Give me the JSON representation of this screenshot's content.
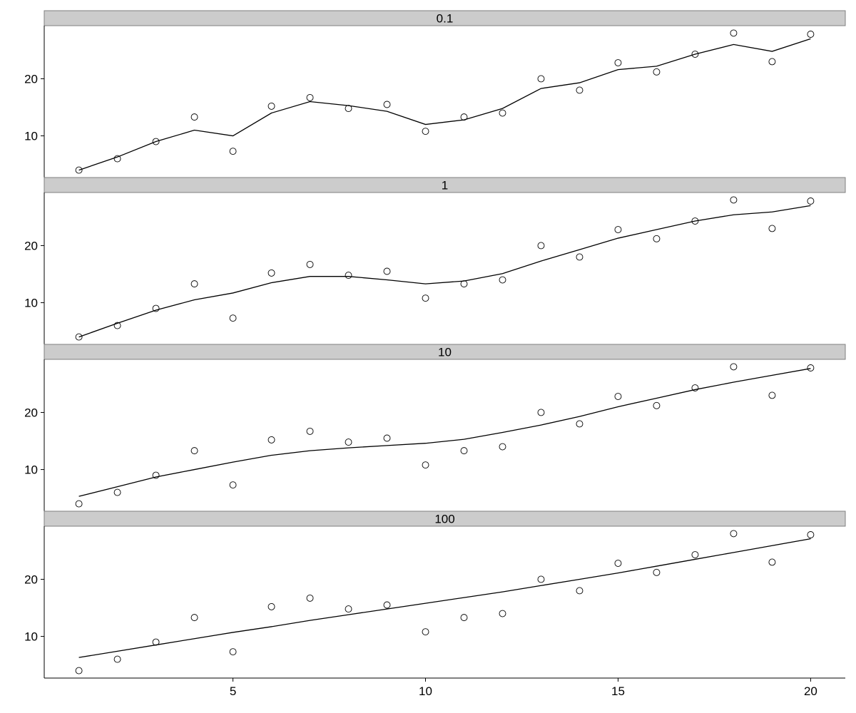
{
  "chart_data": {
    "type": "scatter",
    "facet_labels": [
      "0.1",
      "1",
      "10",
      "100"
    ],
    "x": [
      1,
      2,
      3,
      4,
      5,
      6,
      7,
      8,
      9,
      10,
      11,
      12,
      13,
      14,
      15,
      16,
      17,
      18,
      19,
      20
    ],
    "points_y": [
      4.0,
      6.0,
      9.0,
      13.3,
      7.3,
      15.2,
      16.7,
      14.8,
      15.5,
      10.8,
      13.3,
      14.0,
      20.0,
      18.0,
      22.8,
      21.2,
      24.3,
      28.0,
      23.0,
      27.8
    ],
    "fits": [
      {
        "facet": "0.1",
        "values": [
          4.0,
          6.3,
          9.0,
          11.0,
          10.0,
          14.0,
          16.0,
          15.3,
          14.3,
          12.0,
          12.8,
          14.8,
          18.3,
          19.3,
          21.6,
          22.2,
          24.3,
          26.0,
          24.8,
          27.0
        ]
      },
      {
        "facet": "1",
        "values": [
          4.0,
          6.4,
          8.7,
          10.5,
          11.7,
          13.5,
          14.6,
          14.6,
          14.0,
          13.3,
          13.8,
          15.1,
          17.3,
          19.3,
          21.3,
          22.8,
          24.3,
          25.4,
          25.9,
          27.0
        ]
      },
      {
        "facet": "10",
        "values": [
          5.3,
          7.0,
          8.7,
          10.0,
          11.3,
          12.5,
          13.3,
          13.8,
          14.2,
          14.6,
          15.3,
          16.5,
          17.8,
          19.3,
          21.0,
          22.5,
          24.0,
          25.3,
          26.5,
          27.7
        ]
      },
      {
        "facet": "100",
        "values": [
          6.3,
          7.4,
          8.5,
          9.6,
          10.7,
          11.7,
          12.8,
          13.8,
          14.8,
          15.8,
          16.8,
          17.8,
          18.9,
          20.0,
          21.1,
          22.3,
          23.5,
          24.7,
          25.9,
          27.1
        ]
      }
    ],
    "x_ticks": [
      5,
      10,
      15,
      20
    ],
    "y_ticks": [
      10,
      20
    ],
    "xlim": [
      0.1,
      20.9
    ],
    "ylim": [
      2.7,
      29.3
    ],
    "title": "",
    "xlabel": "",
    "ylabel": "",
    "grid": false,
    "legend": "none"
  }
}
